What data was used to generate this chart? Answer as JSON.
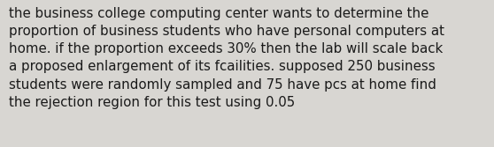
{
  "text": "the business college computing center wants to determine the\nproportion of business students who have personal computers at\nhome. if the proportion exceeds 30% then the lab will scale back\na proposed enlargement of its fcailities. supposed 250 business\nstudents were randomly sampled and 75 have pcs at home find\nthe rejection region for this test using 0.05",
  "background_color": "#d8d6d2",
  "text_color": "#1a1a1a",
  "font_size": 10.8,
  "fig_width": 5.58,
  "fig_height": 1.67,
  "dpi": 100
}
